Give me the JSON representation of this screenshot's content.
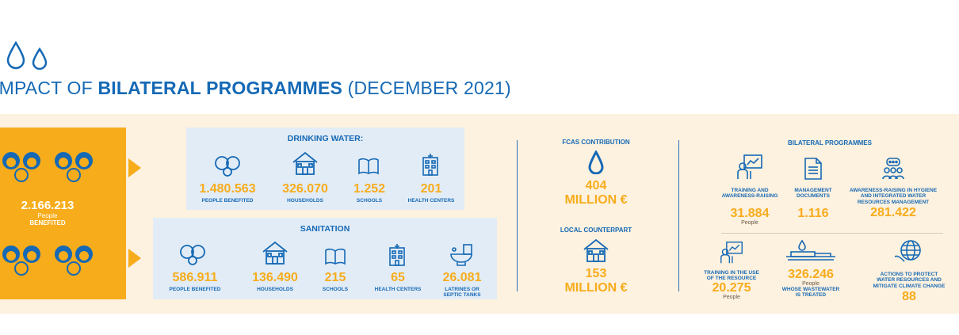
{
  "header": {
    "title_lead": "IMPACT OF",
    "title_bold": "BILATERAL PROGRAMMES",
    "title_tail": "(DECEMBER 2021)"
  },
  "summary": {
    "value": "2.166.213",
    "unit": "People",
    "label": "BENEFITED"
  },
  "drinking_water": {
    "title": "DRINKING WATER:",
    "stats": [
      {
        "value": "1.480.563",
        "label": "PEOPLE BENEFITED",
        "icon": "people-icon"
      },
      {
        "value": "326.070",
        "label": "HOUSEHOLDS",
        "icon": "house-icon"
      },
      {
        "value": "1.252",
        "label": "SCHOOLS",
        "icon": "book-icon"
      },
      {
        "value": "201",
        "label": "HEALTH CENTERS",
        "icon": "hospital-icon"
      }
    ]
  },
  "sanitation": {
    "title": "SANITATION",
    "stats": [
      {
        "value": "586.911",
        "label": "PEOPLE BENEFITED",
        "icon": "people-icon"
      },
      {
        "value": "136.490",
        "label": "HOUSEHOLDS",
        "icon": "house-icon"
      },
      {
        "value": "215",
        "label": "SCHOOLS",
        "icon": "book-icon"
      },
      {
        "value": "65",
        "label": "HEALTH CENTERS",
        "icon": "hospital-icon"
      },
      {
        "value": "26.081",
        "label": "LATRINES OR",
        "label2": "SEPTIC TANKS",
        "icon": "toilet-icon"
      }
    ]
  },
  "funding": {
    "fcas_title": "FCAS CONTRIBUTION",
    "fcas_value": "404",
    "fcas_unit": "MILLION €",
    "local_title": "LOCAL COUNTERPART",
    "local_value": "153",
    "local_unit": "MILLION €"
  },
  "bilateral": {
    "title": "BILATERAL PROGRAMMES",
    "training": {
      "label1": "TRAINING AND",
      "label2": "AWARENESS-RAISING",
      "value": "31.884",
      "unit": "People"
    },
    "docs": {
      "label1": "MANAGEMENT",
      "label2": "DOCUMENTS",
      "value": "1.116"
    },
    "hygiene": {
      "label1": "AWARENESS-RAISING IN HYGIENE",
      "label2": "AND INTEGRATED WATER",
      "label3": "RESOURCES MANAGEMENT",
      "value": "281.422"
    },
    "resource": {
      "label1": "TRAINING IN THE USE",
      "label2": "OF THE RESOURCE",
      "value": "20.275",
      "unit": "People"
    },
    "wastewater": {
      "value": "326.246",
      "unit": "People",
      "label1": "WHOSE WASTEWATER",
      "label2": "IS TREATED"
    },
    "climate": {
      "label1": "ACTIONS TO PROTECT",
      "label2": "WATER RESOURCES AND",
      "label3": "MITIGATE CLIMATE CHANGE",
      "value": "88"
    }
  },
  "colors": {
    "orange": "#f7ac1b",
    "blue": "#1569b5",
    "band": "#fdf1df",
    "panel": "#e2ecf6"
  }
}
